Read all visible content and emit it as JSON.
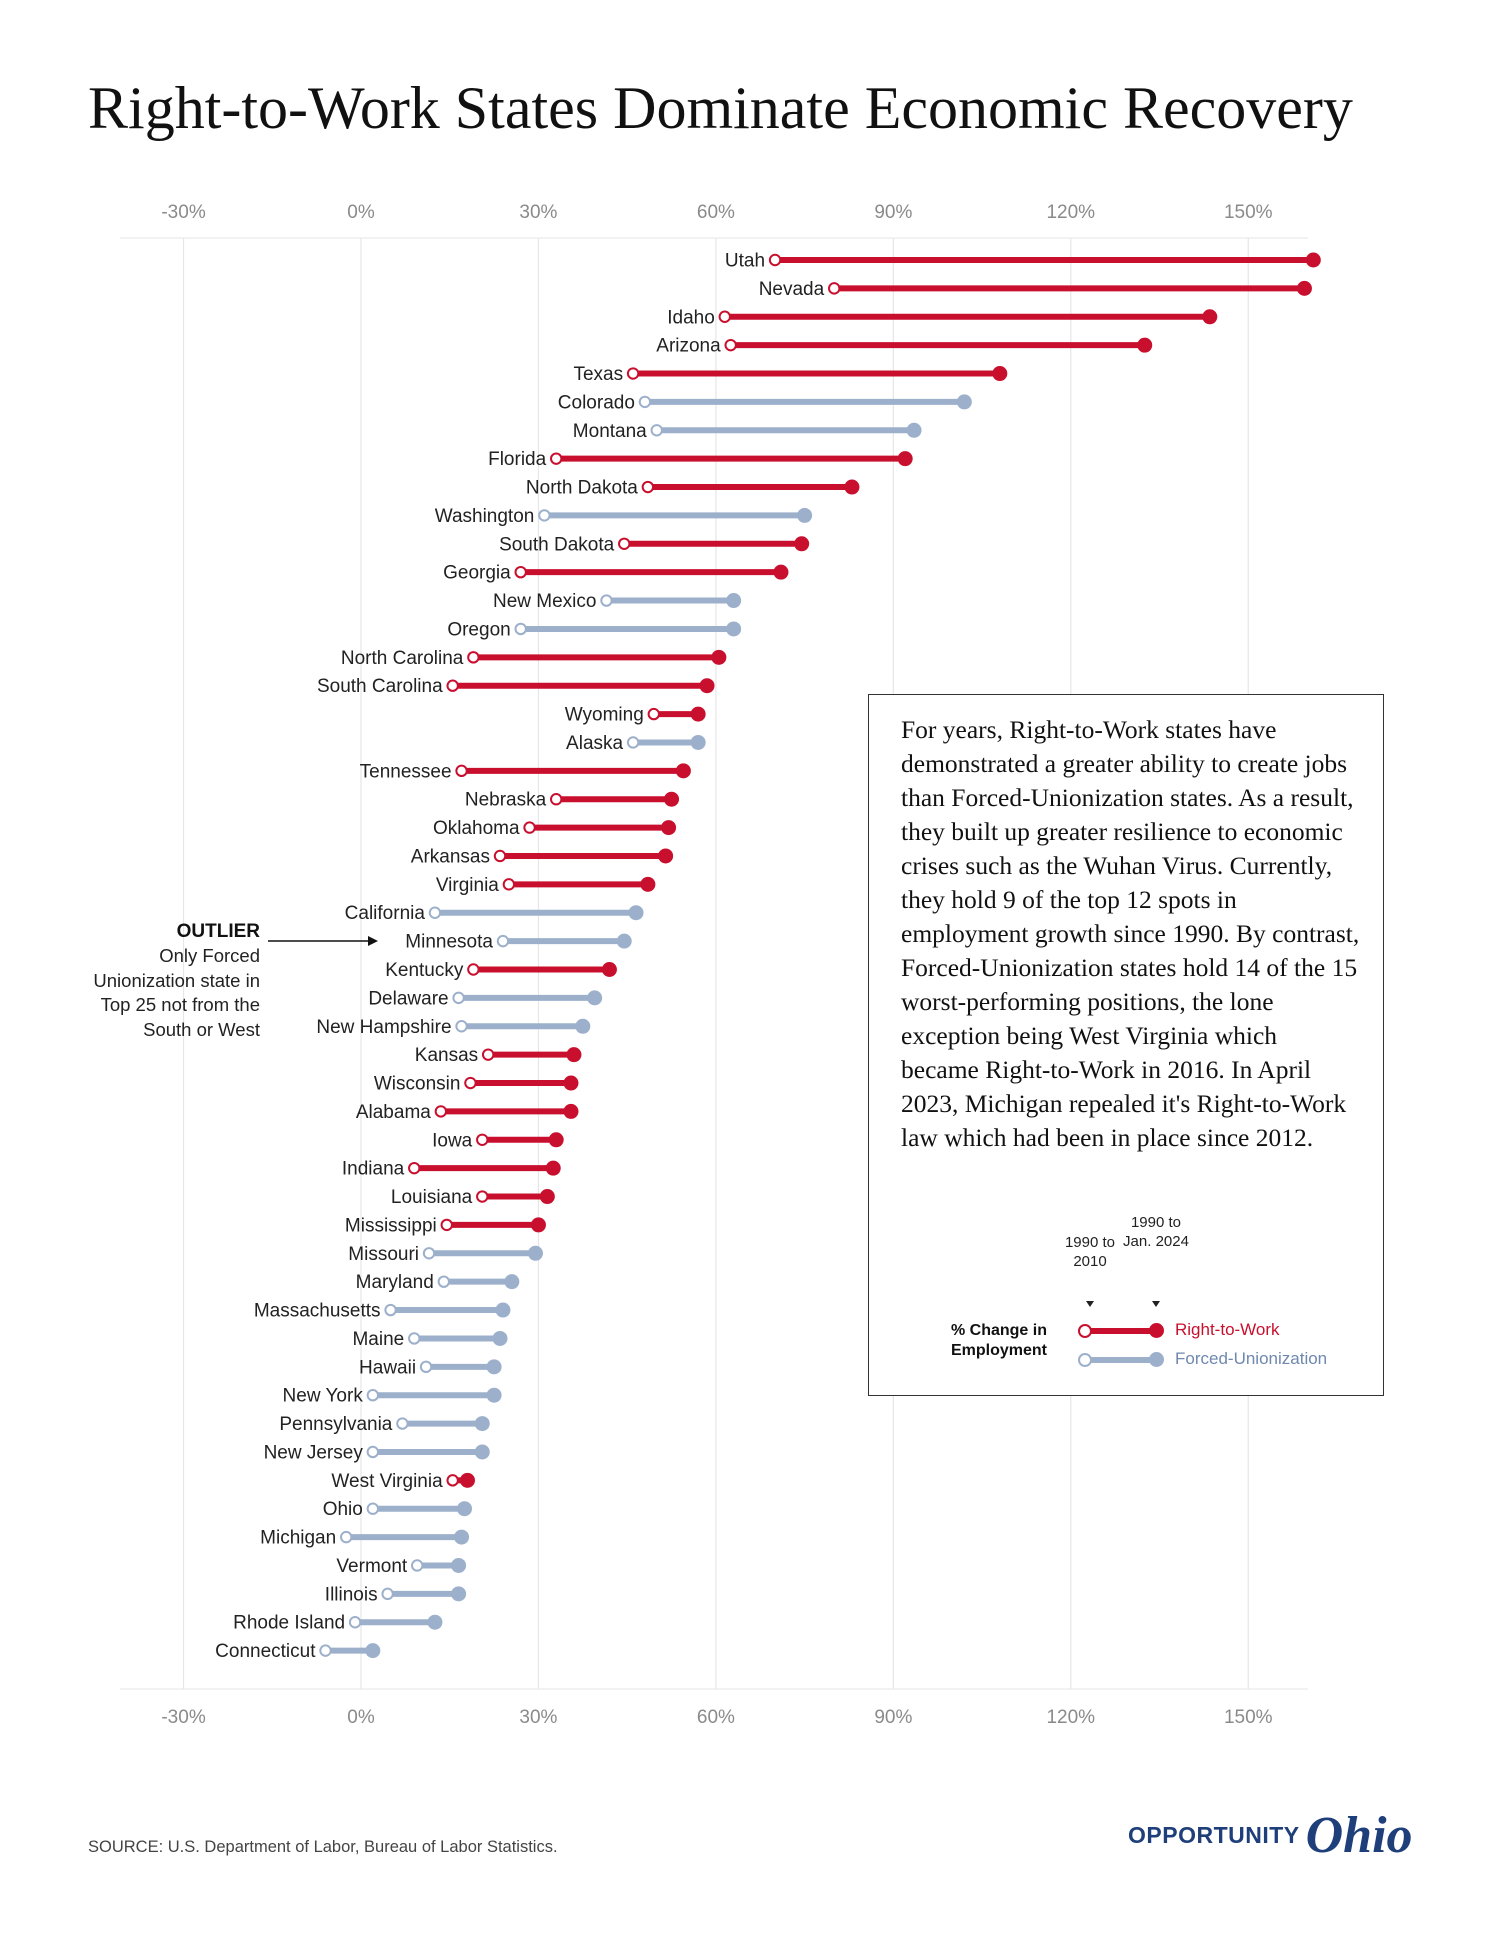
{
  "title": "Right-to-Work States Dominate Economic Recovery",
  "colors": {
    "right_to_work": "#c8102e",
    "forced_unionization": "#9db0cb",
    "grid": "#e6e6e6",
    "logo": "#1f3f7a"
  },
  "callout": {
    "text": "For years, Right-to-Work states have demonstrated a greater ability to create jobs than Forced-Unionization states. As a result, they built up greater resilience to economic crises such as the Wuhan Virus. Currently, they hold 9 of the top 12 spots in employment growth since 1990. By contrast, Forced-Unionization states hold 14 of the 15 worst-performing positions, the lone exception being West Virginia which became Right-to-Work in 2016. In April 2023, Michigan repealed it's Right-to-Work law which had been in place since 2012."
  },
  "legend": {
    "period_start": "1990 to 2010",
    "period_end": "1990 to Jan. 2024",
    "measure": "% Change in Employment",
    "series_rtw": "Right-to-Work",
    "series_fu": "Forced-Unionization"
  },
  "outlier": {
    "title": "OUTLIER",
    "note": "Only Forced Unionization state in Top 25 not from the South or West"
  },
  "source": "SOURCE: U.S. Department of Labor, Bureau of Labor Statistics.",
  "logo": {
    "word": "OPPORTUNITY",
    "script": "Ohio"
  },
  "chart_data": {
    "type": "dumbbell",
    "x_ticks": [
      "-30%",
      "0%",
      "30%",
      "60%",
      "90%",
      "120%",
      "150%"
    ],
    "x_tick_values": [
      -30,
      0,
      30,
      60,
      90,
      120,
      150
    ],
    "xlim": [
      -40,
      160
    ],
    "grid": true,
    "series": [
      {
        "name": "1990 to 2010",
        "marker": "open circle"
      },
      {
        "name": "1990 to Jan. 2024",
        "marker": "filled circle"
      }
    ],
    "states": [
      {
        "state": "Utah",
        "group": "Right-to-Work",
        "start": 70,
        "end": 161
      },
      {
        "state": "Nevada",
        "group": "Right-to-Work",
        "start": 80,
        "end": 159.5
      },
      {
        "state": "Idaho",
        "group": "Right-to-Work",
        "start": 61.5,
        "end": 143.5
      },
      {
        "state": "Arizona",
        "group": "Right-to-Work",
        "start": 62.5,
        "end": 132.5
      },
      {
        "state": "Texas",
        "group": "Right-to-Work",
        "start": 46,
        "end": 108
      },
      {
        "state": "Colorado",
        "group": "Forced-Unionization",
        "start": 48,
        "end": 102
      },
      {
        "state": "Montana",
        "group": "Forced-Unionization",
        "start": 50,
        "end": 93.5
      },
      {
        "state": "Florida",
        "group": "Right-to-Work",
        "start": 33,
        "end": 92
      },
      {
        "state": "North Dakota",
        "group": "Right-to-Work",
        "start": 48.5,
        "end": 83
      },
      {
        "state": "Washington",
        "group": "Forced-Unionization",
        "start": 31,
        "end": 75
      },
      {
        "state": "South Dakota",
        "group": "Right-to-Work",
        "start": 44.5,
        "end": 74.5
      },
      {
        "state": "Georgia",
        "group": "Right-to-Work",
        "start": 27,
        "end": 71
      },
      {
        "state": "New Mexico",
        "group": "Forced-Unionization",
        "start": 41.5,
        "end": 63
      },
      {
        "state": "Oregon",
        "group": "Forced-Unionization",
        "start": 27,
        "end": 63
      },
      {
        "state": "North Carolina",
        "group": "Right-to-Work",
        "start": 19,
        "end": 60.5
      },
      {
        "state": "South Carolina",
        "group": "Right-to-Work",
        "start": 15.5,
        "end": 58.5
      },
      {
        "state": "Wyoming",
        "group": "Right-to-Work",
        "start": 49.5,
        "end": 57
      },
      {
        "state": "Alaska",
        "group": "Forced-Unionization",
        "start": 46,
        "end": 57
      },
      {
        "state": "Tennessee",
        "group": "Right-to-Work",
        "start": 17,
        "end": 54.5
      },
      {
        "state": "Nebraska",
        "group": "Right-to-Work",
        "start": 33,
        "end": 52.5
      },
      {
        "state": "Oklahoma",
        "group": "Right-to-Work",
        "start": 28.5,
        "end": 52
      },
      {
        "state": "Arkansas",
        "group": "Right-to-Work",
        "start": 23.5,
        "end": 51.5
      },
      {
        "state": "Virginia",
        "group": "Right-to-Work",
        "start": 25,
        "end": 48.5
      },
      {
        "state": "California",
        "group": "Forced-Unionization",
        "start": 12.5,
        "end": 46.5
      },
      {
        "state": "Minnesota",
        "group": "Forced-Unionization",
        "start": 24,
        "end": 44.5
      },
      {
        "state": "Kentucky",
        "group": "Right-to-Work",
        "start": 19,
        "end": 42
      },
      {
        "state": "Delaware",
        "group": "Forced-Unionization",
        "start": 16.5,
        "end": 39.5
      },
      {
        "state": "New Hampshire",
        "group": "Forced-Unionization",
        "start": 17,
        "end": 37.5
      },
      {
        "state": "Kansas",
        "group": "Right-to-Work",
        "start": 21.5,
        "end": 36
      },
      {
        "state": "Wisconsin",
        "group": "Right-to-Work",
        "start": 18.5,
        "end": 35.5
      },
      {
        "state": "Alabama",
        "group": "Right-to-Work",
        "start": 13.5,
        "end": 35.5
      },
      {
        "state": "Iowa",
        "group": "Right-to-Work",
        "start": 20.5,
        "end": 33
      },
      {
        "state": "Indiana",
        "group": "Right-to-Work",
        "start": 9,
        "end": 32.5
      },
      {
        "state": "Louisiana",
        "group": "Right-to-Work",
        "start": 20.5,
        "end": 31.5
      },
      {
        "state": "Mississippi",
        "group": "Right-to-Work",
        "start": 14.5,
        "end": 30
      },
      {
        "state": "Missouri",
        "group": "Forced-Unionization",
        "start": 11.5,
        "end": 29.5
      },
      {
        "state": "Maryland",
        "group": "Forced-Unionization",
        "start": 14,
        "end": 25.5
      },
      {
        "state": "Massachusetts",
        "group": "Forced-Unionization",
        "start": 5,
        "end": 24
      },
      {
        "state": "Maine",
        "group": "Forced-Unionization",
        "start": 9,
        "end": 23.5
      },
      {
        "state": "Hawaii",
        "group": "Forced-Unionization",
        "start": 11,
        "end": 22.5
      },
      {
        "state": "New York",
        "group": "Forced-Unionization",
        "start": 2,
        "end": 22.5
      },
      {
        "state": "Pennsylvania",
        "group": "Forced-Unionization",
        "start": 7,
        "end": 20.5
      },
      {
        "state": "New Jersey",
        "group": "Forced-Unionization",
        "start": 2,
        "end": 20.5
      },
      {
        "state": "West Virginia",
        "group": "Right-to-Work",
        "start": 15.5,
        "end": 18
      },
      {
        "state": "Ohio",
        "group": "Forced-Unionization",
        "start": 2,
        "end": 17.5
      },
      {
        "state": "Michigan",
        "group": "Forced-Unionization",
        "start": -2.5,
        "end": 17
      },
      {
        "state": "Vermont",
        "group": "Forced-Unionization",
        "start": 9.5,
        "end": 16.5
      },
      {
        "state": "Illinois",
        "group": "Forced-Unionization",
        "start": 4.5,
        "end": 16.5
      },
      {
        "state": "Rhode Island",
        "group": "Forced-Unionization",
        "start": -1,
        "end": 12.5
      },
      {
        "state": "Connecticut",
        "group": "Forced-Unionization",
        "start": -6,
        "end": 2
      }
    ]
  }
}
